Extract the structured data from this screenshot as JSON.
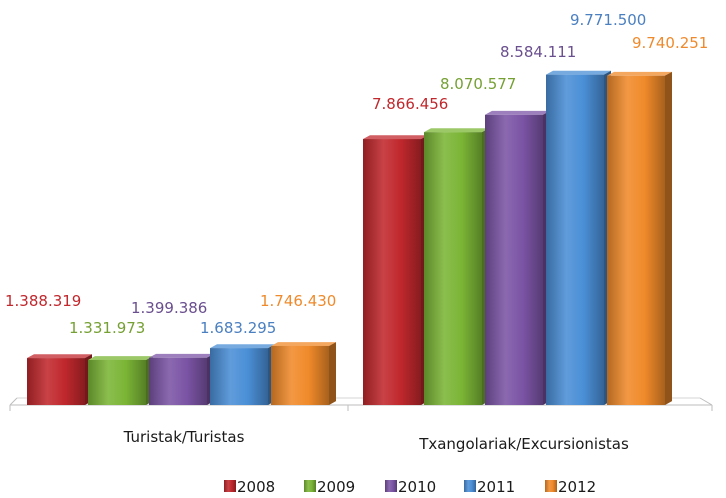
{
  "chart_data": {
    "type": "bar",
    "title": "",
    "xlabel": "",
    "ylabel": "",
    "ylim": [
      0,
      10500000
    ],
    "grid": false,
    "legend_position": "bottom",
    "categories": [
      "Turistak/Turistas",
      "Txangolariak/Excursionistas"
    ],
    "series": [
      {
        "name": "2008",
        "color": "#c0282d",
        "label_color": "#c0282d",
        "values": [
          1388319,
          7866456
        ],
        "labels": [
          "1.388.319",
          "7.866.456"
        ]
      },
      {
        "name": "2009",
        "color": "#7bb536",
        "label_color": "#76a034",
        "values": [
          1331973,
          8070577
        ],
        "labels": [
          "1.331.973",
          "8.070.577"
        ]
      },
      {
        "name": "2010",
        "color": "#7b54a5",
        "label_color": "#6a4f8f",
        "values": [
          1399386,
          8584111
        ],
        "labels": [
          "1.399.386",
          "8.584.111"
        ]
      },
      {
        "name": "2011",
        "color": "#4a8fd6",
        "label_color": "#4a7fc0",
        "values": [
          1683295,
          9771500
        ],
        "labels": [
          "1.683.295",
          "9.771.500"
        ]
      },
      {
        "name": "2012",
        "color": "#f08a2a",
        "label_color": "#ef8a2c",
        "values": [
          1746430,
          9740251
        ],
        "labels": [
          "1.746.430",
          "9.740.251"
        ]
      }
    ]
  }
}
